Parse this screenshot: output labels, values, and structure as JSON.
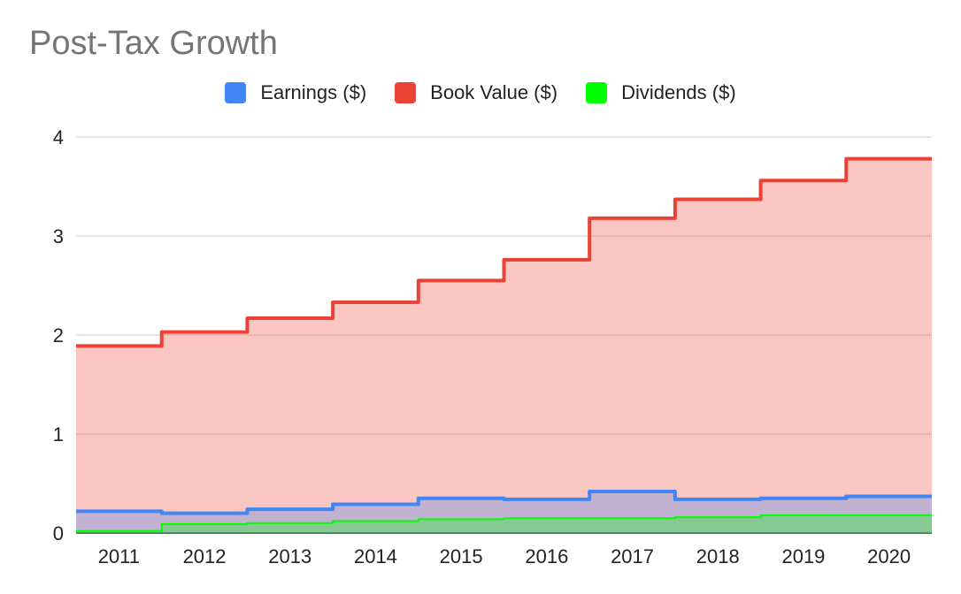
{
  "chart_data": {
    "type": "area",
    "title": "Post-Tax Growth",
    "xlabel": "",
    "ylabel": "",
    "categories": [
      "2011",
      "2012",
      "2013",
      "2014",
      "2015",
      "2016",
      "2017",
      "2018",
      "2019",
      "2020"
    ],
    "ylim": [
      0,
      4
    ],
    "yticks": [
      "0",
      "1",
      "2",
      "3",
      "4"
    ],
    "grid": true,
    "legend_position": "top",
    "stepped": true,
    "series": [
      {
        "name": "Book Value ($)",
        "color": "#ea4335",
        "values": [
          1.89,
          2.03,
          2.17,
          2.33,
          2.55,
          2.76,
          3.18,
          3.37,
          3.56,
          3.78
        ]
      },
      {
        "name": "Earnings ($)",
        "color": "#4285f4",
        "values": [
          0.22,
          0.2,
          0.24,
          0.29,
          0.35,
          0.34,
          0.42,
          0.34,
          0.35,
          0.37
        ]
      },
      {
        "name": "Dividends ($)",
        "color": "#00ff00",
        "values": [
          0.02,
          0.09,
          0.1,
          0.12,
          0.14,
          0.15,
          0.15,
          0.16,
          0.18,
          0.18
        ]
      }
    ],
    "legend": [
      {
        "name": "Earnings ($)",
        "color": "#4285f4"
      },
      {
        "name": "Book Value ($)",
        "color": "#ea4335"
      },
      {
        "name": "Dividends ($)",
        "color": "#00ff00"
      }
    ]
  }
}
